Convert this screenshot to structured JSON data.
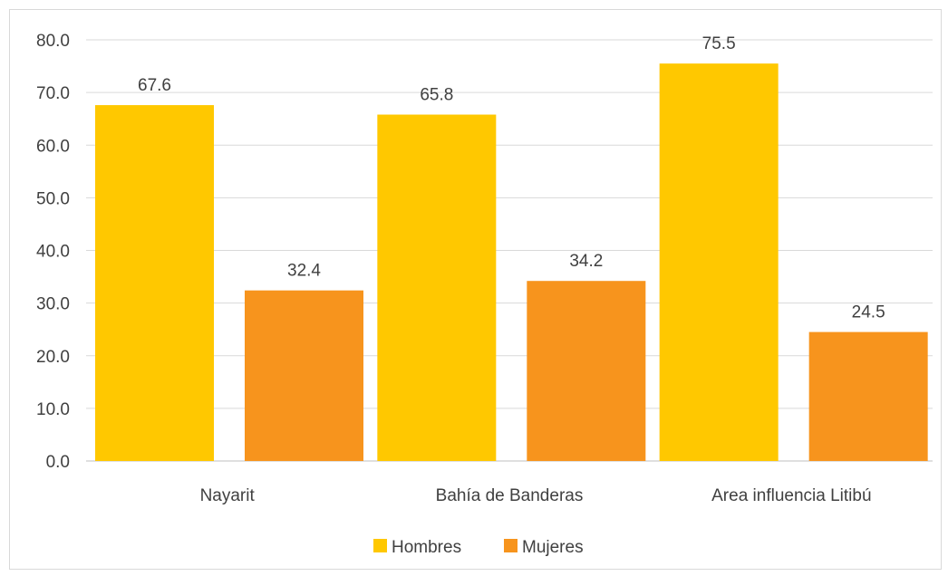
{
  "chart_data": {
    "type": "bar",
    "title": "",
    "xlabel": "",
    "ylabel": "",
    "categories": [
      "Nayarit",
      "Bahía de Banderas",
      "Area influencia Litibú"
    ],
    "series": [
      {
        "name": "Hombres",
        "color": "#FFC800",
        "values": [
          67.6,
          65.8,
          75.5
        ],
        "labels": [
          "67.6",
          "65.8",
          "75.5"
        ]
      },
      {
        "name": "Mujeres",
        "color": "#F7941D",
        "values": [
          32.4,
          34.2,
          24.5
        ],
        "labels": [
          "32.4",
          "34.2",
          "24.5"
        ]
      }
    ],
    "ylim": [
      0,
      80
    ],
    "yticks": [
      0,
      10,
      20,
      30,
      40,
      50,
      60,
      70,
      80
    ],
    "ytick_labels": [
      "0.0",
      "10.0",
      "20.0",
      "30.0",
      "40.0",
      "50.0",
      "60.0",
      "70.0",
      "80.0"
    ],
    "grid": true,
    "legend_position": "bottom"
  }
}
